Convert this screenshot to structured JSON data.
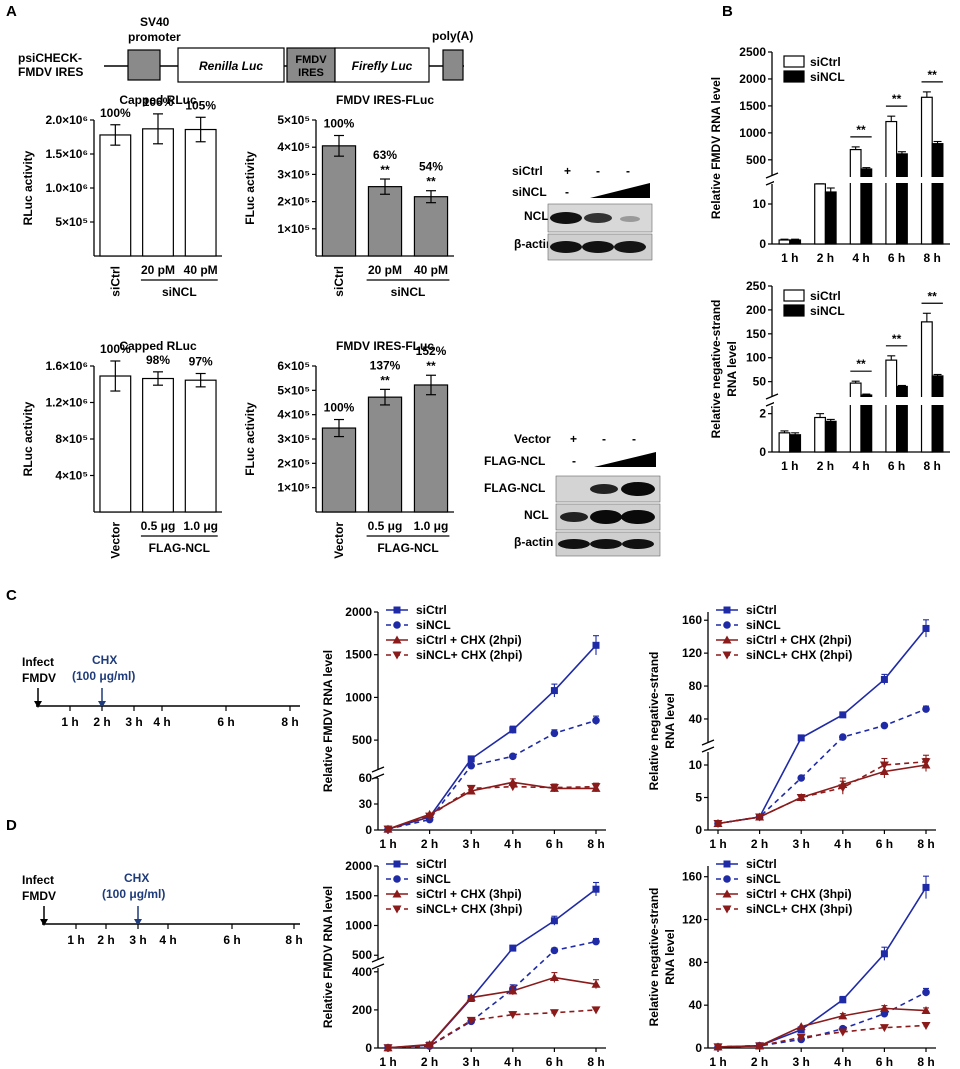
{
  "panel_labels": [
    "A",
    "B",
    "C",
    "D"
  ],
  "construct": {
    "name": [
      "psiCHECK-",
      "FMDV IRES"
    ],
    "promoter": [
      "SV40",
      "promoter"
    ],
    "renilla": "Renilla  Luc",
    "ires": [
      "FMDV",
      "IRES"
    ],
    "firefly": "Firefly Luc",
    "polya": "poly(A)"
  },
  "westerns": {
    "kd": {
      "rows": [
        "siCtrl",
        "siNCL"
      ],
      "signs_row1": [
        "+",
        "-",
        "-"
      ],
      "signs_row2": [
        "-"
      ],
      "bands": [
        "NCL",
        "β-actin"
      ]
    },
    "oe": {
      "rows": [
        "Vector",
        "FLAG-NCL"
      ],
      "signs_row1": [
        "+",
        "-",
        "-"
      ],
      "signs_row2": [
        "-"
      ],
      "bands": [
        "FLAG-NCL",
        "NCL",
        "β-actin"
      ]
    }
  },
  "chart_data": [
    {
      "id": "A1",
      "type": "bar",
      "title": "Capped RLuc",
      "ylabel": "RLuc activity",
      "categories": [
        "siCtrl",
        "20 pM",
        "40 pM"
      ],
      "group_label": "siNCL",
      "values": [
        1.78,
        1.87,
        1.86
      ],
      "errors": [
        0.15,
        0.22,
        0.18
      ],
      "value_unit": "×10^6",
      "ylim": [
        0,
        2.0
      ],
      "yticks": [
        "5×10⁵",
        "1.0×10⁶",
        "1.5×10⁶",
        "2.0×10⁶"
      ],
      "labels": [
        "100%",
        "106%",
        "105%"
      ],
      "stars": [
        "",
        "",
        ""
      ]
    },
    {
      "id": "A2",
      "type": "bar",
      "title": "FMDV IRES-FLuc",
      "ylabel": "FLuc activity",
      "categories": [
        "siCtrl",
        "20 pM",
        "40 pM"
      ],
      "group_label": "siNCL",
      "values": [
        4.05,
        2.55,
        2.18
      ],
      "errors": [
        0.38,
        0.28,
        0.22
      ],
      "value_unit": "×10^5",
      "ylim": [
        0,
        5
      ],
      "yticks": [
        "1×10⁵",
        "2×10⁵",
        "3×10⁵",
        "4×10⁵",
        "5×10⁵"
      ],
      "labels": [
        "100%",
        "63%",
        "54%"
      ],
      "stars": [
        "",
        "**",
        "**"
      ]
    },
    {
      "id": "A3",
      "type": "bar",
      "title": "Capped RLuc",
      "ylabel": "RLuc activity",
      "categories": [
        "Vector",
        "0.5 μg",
        "1.0 μg"
      ],
      "group_label": "FLAG-NCL",
      "values": [
        1.63,
        1.6,
        1.58
      ],
      "errors": [
        0.18,
        0.08,
        0.08
      ],
      "value_unit": "×10^6",
      "ylim": [
        0,
        1.75
      ],
      "yticks": [
        "4×10⁵",
        "8×10⁵",
        "1.2×10⁶",
        "1.6×10⁶"
      ],
      "labels": [
        "100%",
        "98%",
        "97%"
      ],
      "stars": [
        "",
        "",
        ""
      ]
    },
    {
      "id": "A4",
      "type": "bar",
      "title": "FMDV IRES-FLuc",
      "ylabel": "FLuc activity",
      "categories": [
        "Vector",
        "0.5 μg",
        "1.0 μg"
      ],
      "group_label": "FLAG-NCL",
      "values": [
        3.45,
        4.72,
        5.22
      ],
      "errors": [
        0.35,
        0.32,
        0.4
      ],
      "value_unit": "×10^5",
      "ylim": [
        0,
        6
      ],
      "yticks": [
        "1×10⁵",
        "2×10⁵",
        "3×10⁵",
        "4×10⁵",
        "5×10⁵",
        "6×10⁵"
      ],
      "labels": [
        "100%",
        "137%",
        "152%"
      ],
      "stars": [
        "",
        "**",
        "**"
      ]
    },
    {
      "id": "B1",
      "type": "bar",
      "ylabel": "Relative FMDV RNA level",
      "categories": [
        "1 h",
        "2 h",
        "4 h",
        "6 h",
        "8 h"
      ],
      "series": [
        {
          "name": "siCtrl",
          "values": [
            1,
            17,
            690,
            1210,
            1660
          ],
          "errors": [
            0.2,
            1.5,
            50,
            100,
            100
          ]
        },
        {
          "name": "siNCL",
          "values": [
            1,
            13,
            330,
            610,
            800
          ],
          "errors": [
            0.2,
            1,
            25,
            40,
            40
          ]
        }
      ],
      "yticks_top": [
        "500",
        "1000",
        "1500",
        "2000",
        "2500"
      ],
      "yticks_bottom": [
        "0",
        "10"
      ],
      "stars": [
        "",
        "",
        "**",
        "**",
        "**"
      ]
    },
    {
      "id": "B2",
      "type": "bar",
      "ylabel": "Relative negative-strand RNA level",
      "categories": [
        "1 h",
        "2 h",
        "4 h",
        "6 h",
        "8 h"
      ],
      "series": [
        {
          "name": "siCtrl",
          "values": [
            1,
            1.8,
            47,
            95,
            175
          ],
          "errors": [
            0.1,
            0.2,
            4,
            9,
            18
          ]
        },
        {
          "name": "siNCL",
          "values": [
            0.9,
            1.6,
            22,
            40,
            62
          ],
          "errors": [
            0.1,
            0.1,
            2,
            2,
            3
          ]
        }
      ],
      "yticks_top": [
        "50",
        "100",
        "150",
        "200",
        "250"
      ],
      "yticks_bottom": [
        "0",
        "2"
      ],
      "stars": [
        "",
        "",
        "**",
        "**",
        "**"
      ]
    },
    {
      "id": "C1",
      "type": "line",
      "ylabel": "Relative FMDV RNA level",
      "x": [
        "1 h",
        "2 h",
        "3 h",
        "4 h",
        "6 h",
        "8 h"
      ],
      "series": [
        {
          "name": "siCtrl",
          "values": [
            1,
            15,
            280,
            620,
            1080,
            1610
          ]
        },
        {
          "name": "siNCL",
          "values": [
            1,
            12,
            200,
            310,
            580,
            730
          ]
        },
        {
          "name": "siCtrl + CHX (2hpi)",
          "values": [
            1,
            18,
            45,
            55,
            48,
            48
          ]
        },
        {
          "name": "siNCL+ CHX (2hpi)",
          "values": [
            1,
            16,
            48,
            50,
            49,
            50
          ]
        }
      ],
      "yticks_bottom": [
        "0",
        "30",
        "60"
      ],
      "yticks_top": [
        "500",
        "1000",
        "1500",
        "2000"
      ]
    },
    {
      "id": "C2",
      "type": "line",
      "ylabel": "Relative negative-strand RNA level",
      "x": [
        "1 h",
        "2 h",
        "3 h",
        "4 h",
        "6 h",
        "8 h"
      ],
      "series": [
        {
          "name": "siCtrl",
          "values": [
            1,
            2,
            17,
            45,
            88,
            150
          ]
        },
        {
          "name": "siNCL",
          "values": [
            1,
            2,
            8,
            18,
            32,
            52
          ]
        },
        {
          "name": "siCtrl + CHX (2hpi)",
          "values": [
            1,
            2,
            5,
            7,
            9,
            10
          ]
        },
        {
          "name": "siNCL+ CHX (2hpi)",
          "values": [
            1,
            2,
            5,
            6.5,
            10,
            10.5
          ]
        }
      ],
      "yticks_bottom": [
        "0",
        "5",
        "10"
      ],
      "yticks_top": [
        "40",
        "80",
        "120",
        "160"
      ]
    },
    {
      "id": "D1",
      "type": "line",
      "ylabel": "Relative FMDV RNA level",
      "x": [
        "1 h",
        "2 h",
        "3 h",
        "4 h",
        "6 h",
        "8 h"
      ],
      "series": [
        {
          "name": "siCtrl",
          "values": [
            1,
            15,
            260,
            620,
            1080,
            1610
          ]
        },
        {
          "name": "siNCL",
          "values": [
            1,
            10,
            140,
            310,
            580,
            730
          ]
        },
        {
          "name": "siCtrl + CHX (3hpi)",
          "values": [
            1,
            18,
            265,
            300,
            370,
            335
          ]
        },
        {
          "name": "siNCL+ CHX (3hpi)",
          "values": [
            1,
            12,
            145,
            175,
            185,
            200
          ]
        }
      ],
      "yticks_bottom": [
        "0",
        "200",
        "400"
      ],
      "yticks_top": [
        "500",
        "1000",
        "1500",
        "2000"
      ]
    },
    {
      "id": "D2",
      "type": "line",
      "ylabel": "Relative negative-strand RNA level",
      "x": [
        "1 h",
        "2 h",
        "3 h",
        "4 h",
        "6 h",
        "8 h"
      ],
      "series": [
        {
          "name": "siCtrl",
          "values": [
            1,
            2,
            17,
            45,
            88,
            150
          ]
        },
        {
          "name": "siNCL",
          "values": [
            1,
            2,
            8,
            18,
            32,
            52
          ]
        },
        {
          "name": "siCtrl + CHX (3hpi)",
          "values": [
            1,
            2,
            20,
            30,
            37,
            35
          ]
        },
        {
          "name": "siNCL+ CHX (3hpi)",
          "values": [
            1,
            2,
            10,
            15,
            19,
            21
          ]
        }
      ],
      "yticks": [
        "0",
        "40",
        "80",
        "120",
        "160"
      ]
    }
  ],
  "timelines": {
    "C": {
      "infect": [
        "Infect",
        "FMDV"
      ],
      "drug": [
        "CHX",
        "(100 μg/ml)"
      ],
      "ticks": [
        "1 h",
        "2 h",
        "3 h",
        "4 h",
        "6 h",
        "8 h"
      ],
      "arrow_at": "2 h"
    },
    "D": {
      "infect": [
        "Infect",
        "FMDV"
      ],
      "drug": [
        "CHX",
        "(100 μg/ml)"
      ],
      "ticks": [
        "1 h",
        "2 h",
        "3 h",
        "4 h",
        "6 h",
        "8 h"
      ],
      "arrow_at": "3 h"
    }
  },
  "colors": {
    "blue": "#1f2aa6",
    "red": "#8b1a1a",
    "grey": "#8a8a8a",
    "drug": "#1f3b7a"
  }
}
